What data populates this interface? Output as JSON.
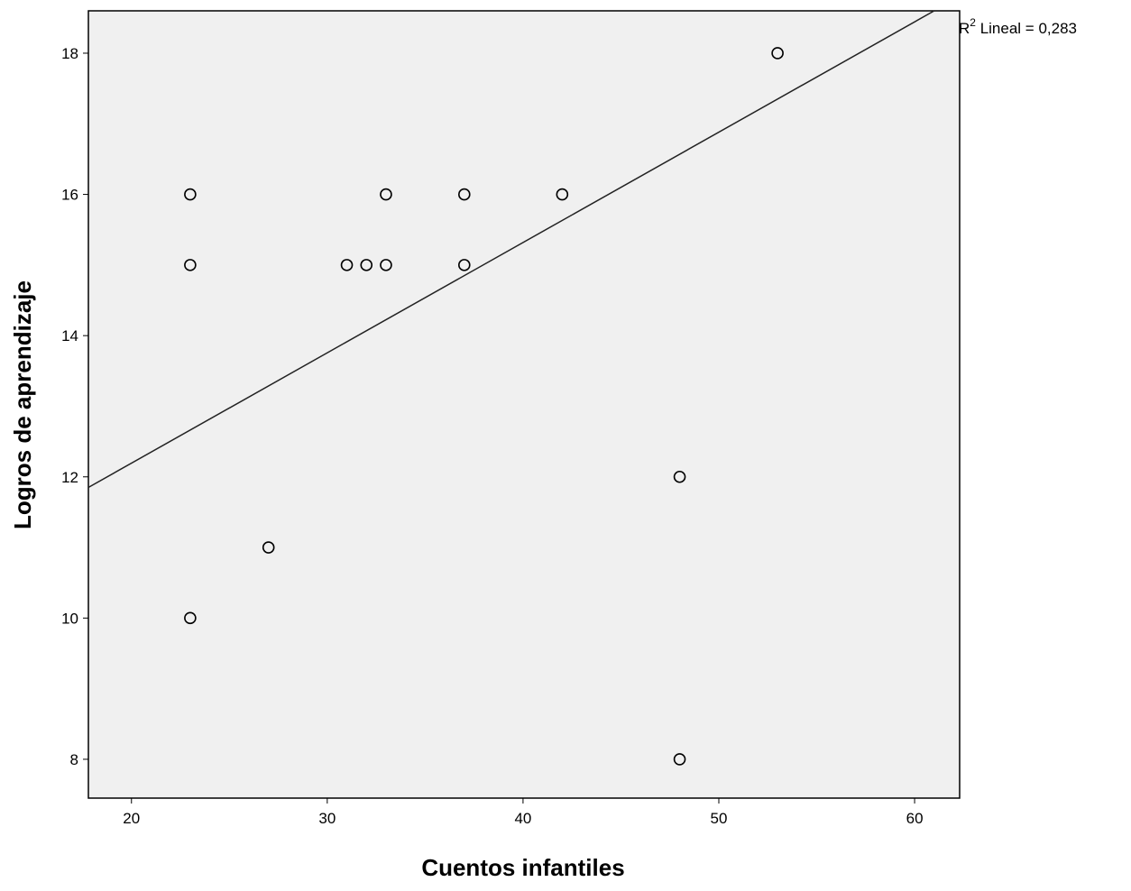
{
  "chart_data": {
    "type": "scatter",
    "title": "",
    "xlabel": "Cuentos infantiles",
    "ylabel": "Logros de aprendizaje",
    "xlim": [
      17.8,
      62.3
    ],
    "ylim": [
      7.45,
      18.6
    ],
    "xticks": [
      20,
      30,
      40,
      50,
      60
    ],
    "yticks": [
      8,
      10,
      12,
      14,
      16,
      18
    ],
    "grid": false,
    "plot_background": "#f0f0f0",
    "marker_color": "#000000",
    "points": [
      {
        "x": 23,
        "y": 16
      },
      {
        "x": 23,
        "y": 15
      },
      {
        "x": 23,
        "y": 10
      },
      {
        "x": 27,
        "y": 11
      },
      {
        "x": 31,
        "y": 15
      },
      {
        "x": 32,
        "y": 15
      },
      {
        "x": 33,
        "y": 16
      },
      {
        "x": 33,
        "y": 15
      },
      {
        "x": 37,
        "y": 16
      },
      {
        "x": 37,
        "y": 15
      },
      {
        "x": 42,
        "y": 16
      },
      {
        "x": 48,
        "y": 12
      },
      {
        "x": 48,
        "y": 8
      },
      {
        "x": 53,
        "y": 18
      }
    ],
    "fit_line": {
      "type": "linear",
      "x": [
        17.8,
        61.0
      ],
      "y": [
        11.85,
        18.6
      ],
      "label_prefix": "R",
      "label_sup": "2",
      "label_suffix": " Lineal = 0,283",
      "r_squared": 0.283
    }
  }
}
